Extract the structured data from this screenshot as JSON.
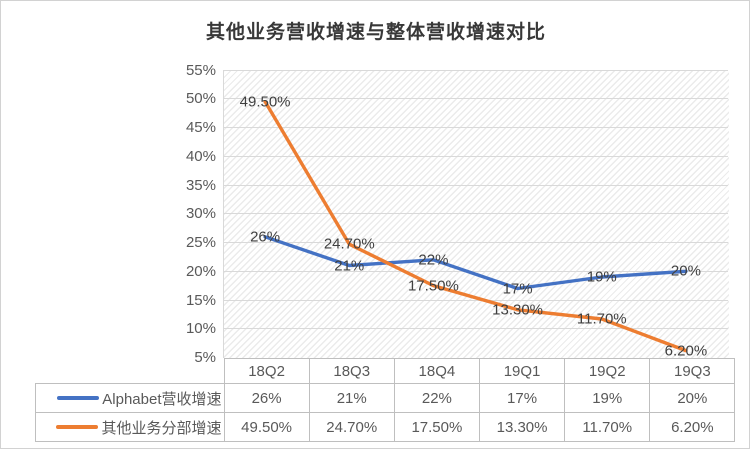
{
  "chart_data": {
    "type": "line",
    "title": "其他业务营收增速与整体营收增速对比",
    "categories": [
      "18Q2",
      "18Q3",
      "18Q4",
      "19Q1",
      "19Q2",
      "19Q3"
    ],
    "series": [
      {
        "name": "Alphabet营收增速",
        "color": "#4472C4",
        "values": [
          26,
          21,
          22,
          17,
          19,
          20
        ],
        "labels": [
          "26%",
          "21%",
          "22%",
          "17%",
          "19%",
          "20%"
        ]
      },
      {
        "name": "其他业务分部增速",
        "color": "#ED7D31",
        "values": [
          49.5,
          24.7,
          17.5,
          13.3,
          11.7,
          6.2
        ],
        "labels": [
          "49.50%",
          "24.70%",
          "17.50%",
          "13.30%",
          "11.70%",
          "6.20%"
        ]
      }
    ],
    "y_axis": {
      "min": 5,
      "max": 55,
      "step": 5,
      "suffix": "%"
    },
    "grid": true,
    "legend_position": "data-table",
    "plot_background": "diagonal-hatch",
    "data_label_position": "center",
    "colors": {
      "grid": "#d9d9d9",
      "table_border": "#bfbfbf",
      "axis_text": "#595959",
      "data_label_text": "#3f3f3f",
      "title_text": "#383838"
    }
  }
}
